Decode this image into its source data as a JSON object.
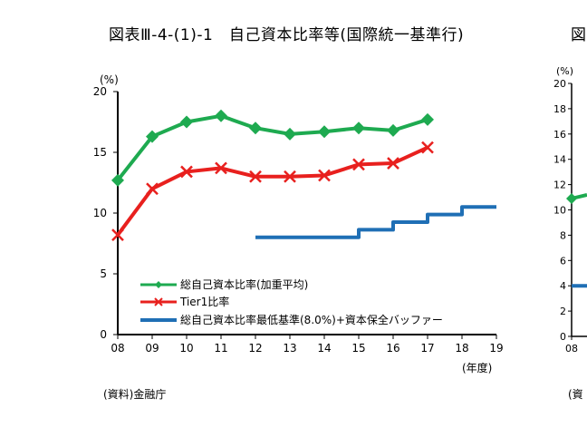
{
  "header": {
    "title": "図表Ⅲ-4-(1)-1　自己資本比率等(国際統一基準行)",
    "title_cut": "図"
  },
  "footer": {
    "source": "(資料)金融庁",
    "source_cut": "(資"
  },
  "chart_data": [
    {
      "type": "line",
      "title": "",
      "ylabel": "(%)",
      "xlabel": "(年度)",
      "categories": [
        "08",
        "09",
        "10",
        "11",
        "12",
        "13",
        "14",
        "15",
        "16",
        "17",
        "18",
        "19"
      ],
      "ylim": [
        0,
        20
      ],
      "yticks": [
        0,
        5,
        10,
        15,
        20
      ],
      "grid": false,
      "legend_position": "bottom-left",
      "series": [
        {
          "name": "総自己資本比率(加重平均)",
          "color": "#1eaa50",
          "marker": "diamond",
          "x": [
            "08",
            "09",
            "10",
            "11",
            "12",
            "13",
            "14",
            "15",
            "16",
            "17"
          ],
          "values": [
            12.7,
            16.3,
            17.5,
            18.0,
            17.0,
            16.5,
            16.7,
            17.0,
            16.8,
            17.7
          ]
        },
        {
          "name": "Tier1比率",
          "color": "#e8201e",
          "marker": "x",
          "x": [
            "08",
            "09",
            "10",
            "11",
            "12",
            "13",
            "14",
            "15",
            "16",
            "17"
          ],
          "values": [
            8.2,
            12.0,
            13.4,
            13.7,
            13.0,
            13.0,
            13.1,
            14.0,
            14.1,
            15.4
          ]
        },
        {
          "name": "総自己資本比率最低基準(8.0%)+資本保全バッファー",
          "color": "#1f6fb5",
          "marker": "none",
          "step": true,
          "x": [
            "12",
            "13",
            "14",
            "15",
            "16",
            "17",
            "18",
            "19"
          ],
          "values": [
            8.0,
            8.0,
            8.0,
            8.625,
            9.25,
            9.875,
            10.5,
            10.5
          ]
        }
      ]
    },
    {
      "type": "line",
      "title": "",
      "ylabel": "(%)",
      "categories": [
        "08"
      ],
      "ylim": [
        0,
        20
      ],
      "yticks": [
        0,
        2,
        4,
        6,
        8,
        10,
        12,
        14,
        16,
        18,
        20
      ],
      "grid": false,
      "series": [
        {
          "color": "#1eaa50",
          "marker": "diamond",
          "x": [
            "08"
          ],
          "values": [
            10.9
          ]
        },
        {
          "color": "#1f6fb5",
          "marker": "none",
          "x": [
            "08"
          ],
          "values": [
            4.0
          ]
        }
      ]
    }
  ]
}
